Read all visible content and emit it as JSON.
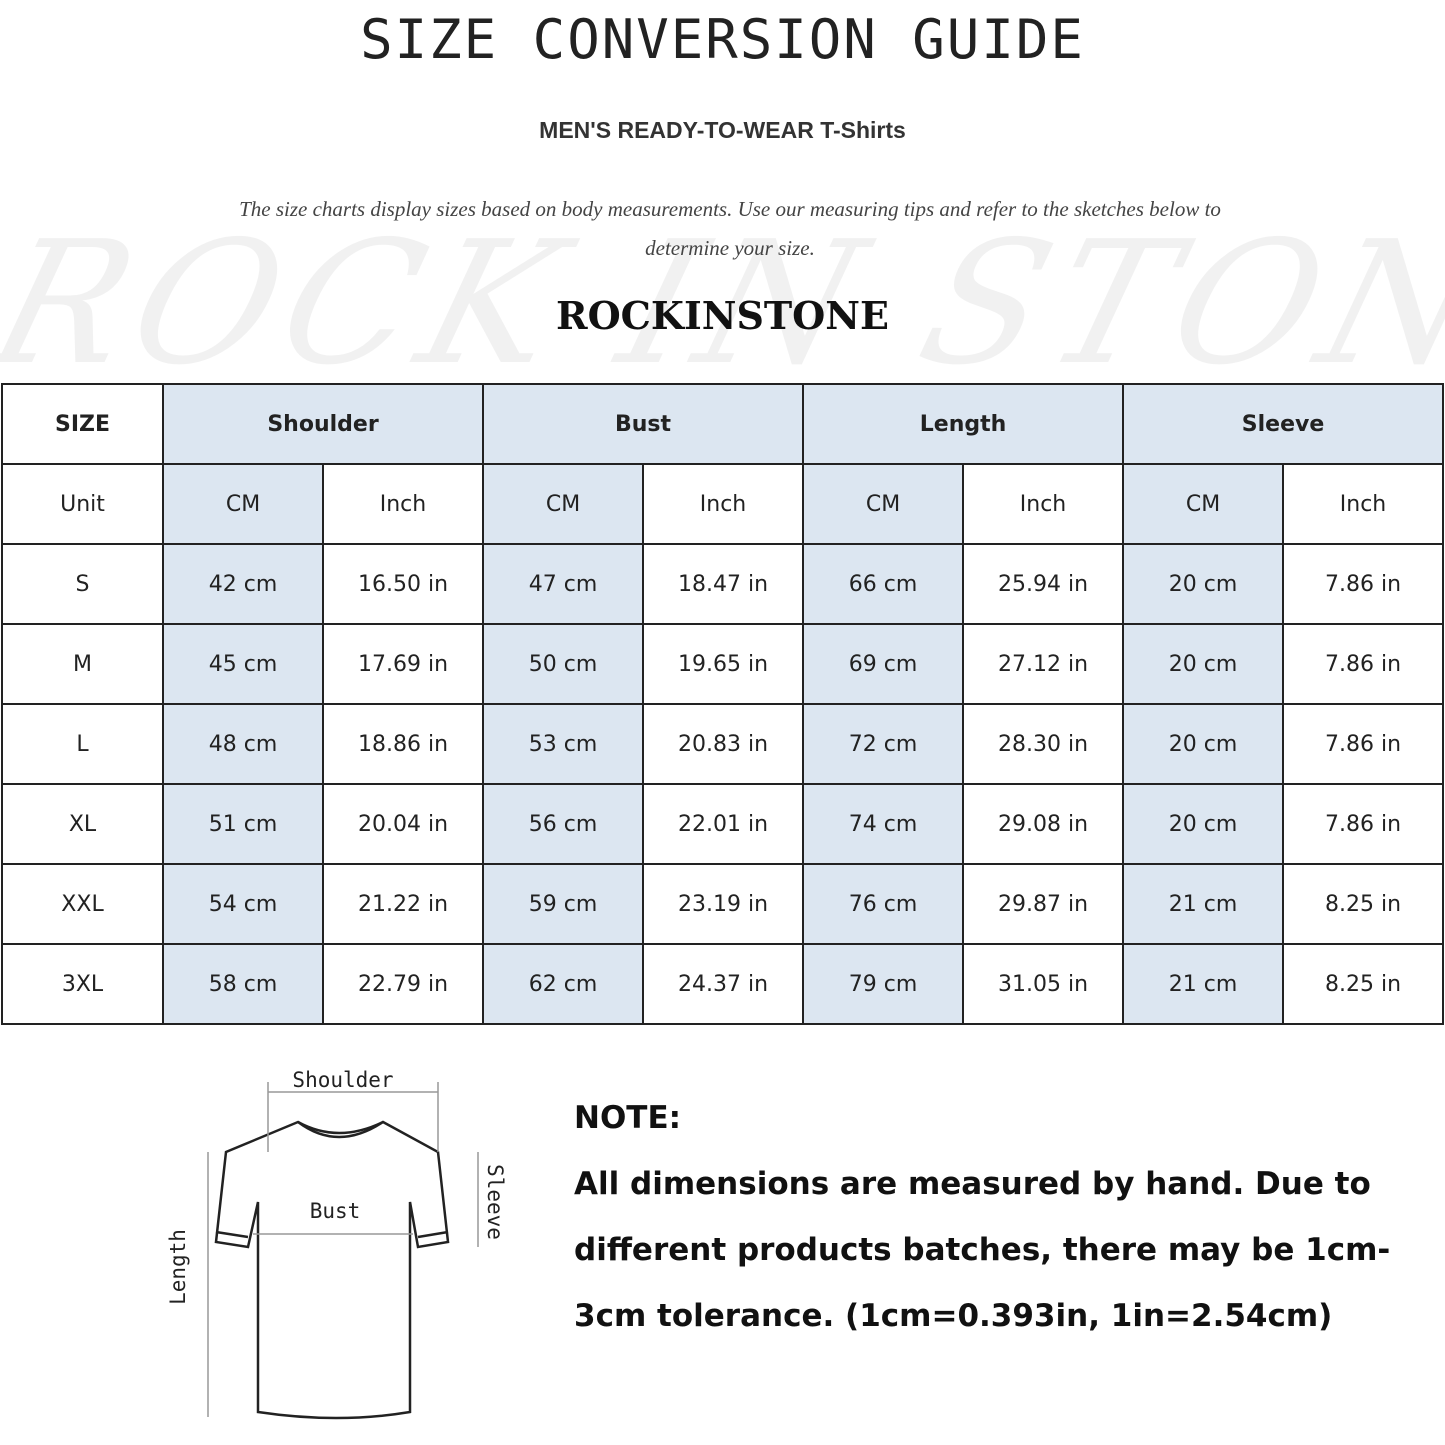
{
  "title": "SIZE CONVERSION GUIDE",
  "subtitle": "MEN'S READY-TO-WEAR T-Shirts",
  "description": "The size charts display sizes based on body measurements. Use our measuring tips and refer to the sketches below to determine your size.",
  "watermark": "ROCK IN STONE",
  "brand": "ROCKINSTONE",
  "colors": {
    "header_fill": "#dce6f1",
    "border": "#222222"
  },
  "table": {
    "header": [
      "SIZE",
      "Shoulder",
      "Bust",
      "Length",
      "Sleeve"
    ],
    "units": [
      "Unit",
      "CM",
      "Inch",
      "CM",
      "Inch",
      "CM",
      "Inch",
      "CM",
      "Inch"
    ],
    "rows": [
      [
        "S",
        "42 cm",
        "16.50 in",
        "47 cm",
        "18.47  in",
        "66 cm",
        "25.94  in",
        "20 cm",
        "7.86  in"
      ],
      [
        "M",
        "45 cm",
        "17.69  in",
        "50 cm",
        "19.65  in",
        "69 cm",
        "27.12  in",
        "20 cm",
        "7.86  in"
      ],
      [
        "L",
        "48 cm",
        "18.86  in",
        "53 cm",
        "20.83  in",
        "72 cm",
        "28.30  in",
        "20 cm",
        "7.86  in"
      ],
      [
        "XL",
        "51 cm",
        "20.04  in",
        "56 cm",
        "22.01  in",
        "74 cm",
        "29.08  in",
        "20 cm",
        "7.86  in"
      ],
      [
        "XXL",
        "54 cm",
        "21.22  in",
        "59 cm",
        "23.19  in",
        "76 cm",
        "29.87  in",
        "21 cm",
        "8.25  in"
      ],
      [
        "3XL",
        "58 cm",
        "22.79  in",
        "62 cm",
        "24.37  in",
        "79 cm",
        "31.05  in",
        "21 cm",
        "8.25  in"
      ]
    ]
  },
  "diagram": {
    "shoulder": "Shoulder",
    "bust": "Bust",
    "length": "Length",
    "sleeve": "Sleeve"
  },
  "note": {
    "heading": "NOTE:",
    "text": "All dimensions are measured by hand. Due to different products batches, there may be 1cm-3cm tolerance. (1cm=0.393in, 1in=2.54cm)"
  }
}
